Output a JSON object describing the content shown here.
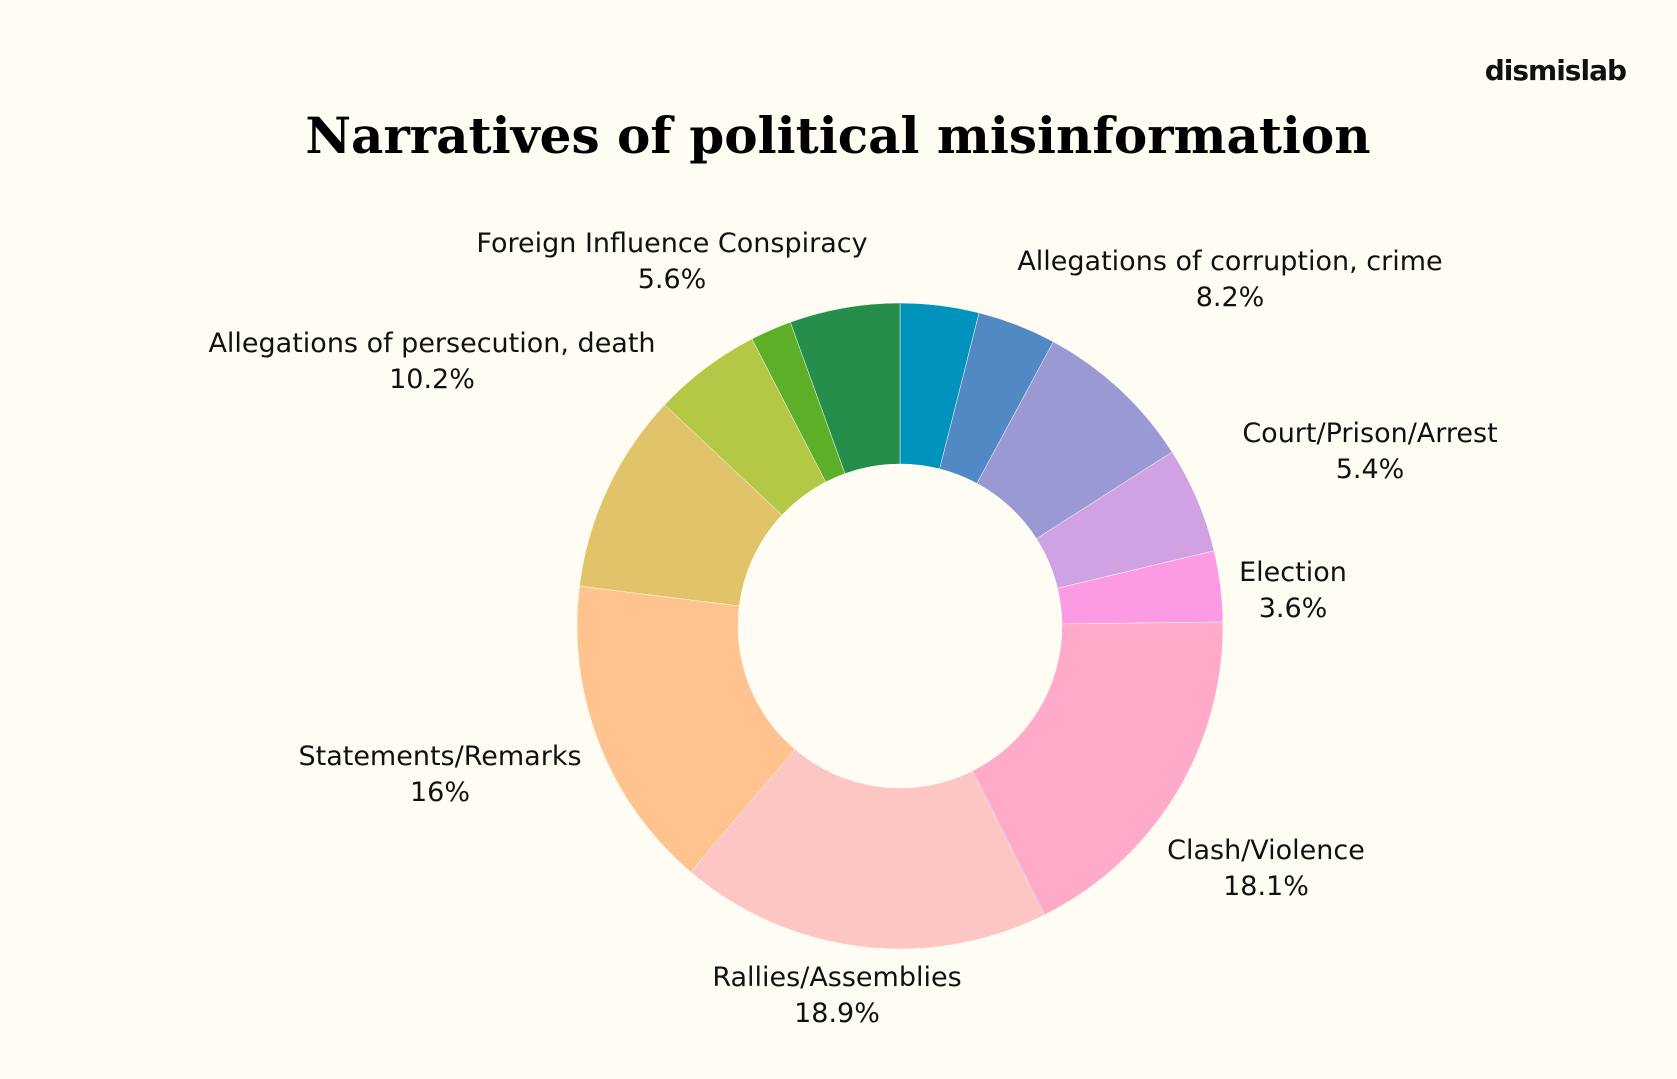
{
  "brand": "dismislab",
  "chart_data": {
    "type": "pie",
    "title": "Narratives of political misinformation",
    "start_angle_deg": 0,
    "direction": "clockwise",
    "slices": [
      {
        "label": "",
        "value": 4.0,
        "value_label": "",
        "color": "#0093bb"
      },
      {
        "label": "",
        "value": 4.0,
        "value_label": "",
        "color": "#5189c4"
      },
      {
        "label": "Allegations of corruption, crime",
        "value": 8.2,
        "value_label": "8.2%",
        "color": "#9a99d4"
      },
      {
        "label": "Court/Prison/Arrest",
        "value": 5.4,
        "value_label": "5.4%",
        "color": "#d1a2e3"
      },
      {
        "label": "Election",
        "value": 3.6,
        "value_label": "3.6%",
        "color": "#fd9ae4"
      },
      {
        "label": "Clash/Violence",
        "value": 18.1,
        "value_label": "18.1%",
        "color": "#feaac8"
      },
      {
        "label": "Rallies/Assemblies",
        "value": 18.9,
        "value_label": "18.9%",
        "color": "#fec5c5"
      },
      {
        "label": "Statements/Remarks",
        "value": 16,
        "value_label": "16%",
        "color": "#fec38f"
      },
      {
        "label": "Allegations of persecution, death",
        "value": 10.2,
        "value_label": "10.2%",
        "color": "#e1c46a"
      },
      {
        "label": "",
        "value": 5.5,
        "value_label": "",
        "color": "#b4c845"
      },
      {
        "label": "",
        "value": 2.1,
        "value_label": "",
        "color": "#5eaf28"
      },
      {
        "label": "Foreign Influence Conspiracy",
        "value": 5.6,
        "value_label": "5.6%",
        "color": "#258e4b"
      }
    ]
  }
}
